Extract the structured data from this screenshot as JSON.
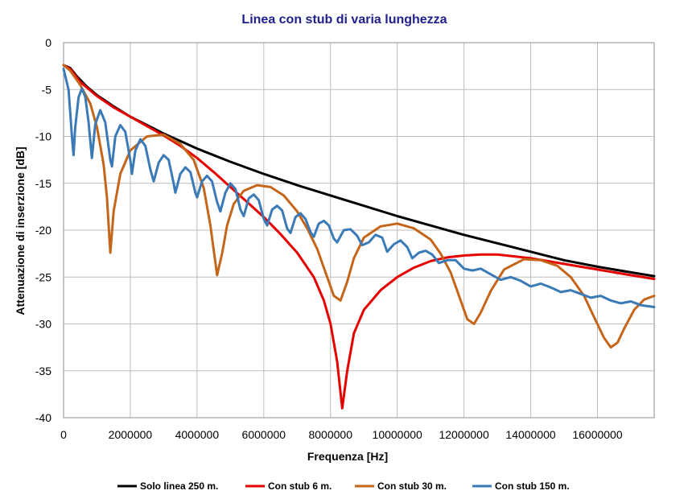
{
  "chart_data": {
    "type": "line",
    "title": "Linea con stub di varia lunghezza",
    "xlabel": "Frequenza [Hz]",
    "ylabel": "Attenuazione di inserzione [dB]",
    "xlim": [
      0,
      17700000
    ],
    "ylim": [
      -40,
      0
    ],
    "x_ticks": [
      0,
      2000000,
      4000000,
      6000000,
      8000000,
      10000000,
      12000000,
      14000000,
      16000000
    ],
    "x_tick_labels": [
      "0",
      "2000000",
      "4000000",
      "6000000",
      "8000000",
      "10000000",
      "12000000",
      "14000000",
      "16000000"
    ],
    "y_ticks": [
      0,
      -5,
      -10,
      -15,
      -20,
      -25,
      -30,
      -35,
      -40
    ],
    "y_tick_labels": [
      "0",
      "-5",
      "-10",
      "-15",
      "-20",
      "-25",
      "-30",
      "-35",
      "-40"
    ],
    "grid": true,
    "legend_position": "bottom",
    "series": [
      {
        "name": "Solo linea 250 m.",
        "color": "#000000",
        "x": [
          0,
          200000,
          400000,
          700000,
          1000000,
          1500000,
          2000000,
          2500000,
          3000000,
          3500000,
          4000000,
          5000000,
          6000000,
          7000000,
          8000000,
          9000000,
          10000000,
          11000000,
          12000000,
          13000000,
          14000000,
          15000000,
          16000000,
          17000000,
          17700000
        ],
        "y": [
          -2.4,
          -2.7,
          -3.6,
          -4.7,
          -5.6,
          -6.8,
          -7.9,
          -8.8,
          -9.7,
          -10.5,
          -11.3,
          -12.7,
          -14.0,
          -15.2,
          -16.3,
          -17.4,
          -18.5,
          -19.5,
          -20.5,
          -21.4,
          -22.3,
          -23.2,
          -23.9,
          -24.5,
          -24.9
        ]
      },
      {
        "name": "Con stub 6 m.",
        "color": "#e60000",
        "x": [
          0,
          200000,
          500000,
          1000000,
          1500000,
          2000000,
          2500000,
          3000000,
          3500000,
          4000000,
          4500000,
          5000000,
          5500000,
          6000000,
          6500000,
          7000000,
          7500000,
          7800000,
          8000000,
          8200000,
          8350000,
          8500000,
          8700000,
          9000000,
          9500000,
          10000000,
          10500000,
          11000000,
          11500000,
          12000000,
          12500000,
          13000000,
          14000000,
          15000000,
          16000000,
          17000000,
          17700000
        ],
        "y": [
          -2.4,
          -2.8,
          -4.2,
          -5.7,
          -6.9,
          -7.9,
          -8.9,
          -9.9,
          -11.0,
          -12.3,
          -13.8,
          -15.4,
          -17.0,
          -18.6,
          -20.4,
          -22.4,
          -25.0,
          -27.5,
          -30.0,
          -34.0,
          -39.0,
          -35.0,
          -31.0,
          -28.5,
          -26.4,
          -25.0,
          -24.0,
          -23.3,
          -22.9,
          -22.7,
          -22.6,
          -22.6,
          -23.0,
          -23.6,
          -24.2,
          -24.8,
          -25.2
        ]
      },
      {
        "name": "Con stub 30 m.",
        "color": "#c5651a",
        "x": [
          0,
          200000,
          500000,
          800000,
          1000000,
          1200000,
          1300000,
          1400000,
          1500000,
          1700000,
          2000000,
          2500000,
          3000000,
          3500000,
          3900000,
          4200000,
          4400000,
          4600000,
          4750000,
          4900000,
          5100000,
          5400000,
          5800000,
          6200000,
          6600000,
          7000000,
          7300000,
          7600000,
          7900000,
          8100000,
          8300000,
          8500000,
          8700000,
          9000000,
          9500000,
          10000000,
          10500000,
          11000000,
          11300000,
          11600000,
          11900000,
          12100000,
          12300000,
          12500000,
          12800000,
          13200000,
          13800000,
          14300000,
          14800000,
          15200000,
          15600000,
          15900000,
          16200000,
          16400000,
          16600000,
          16800000,
          17100000,
          17400000,
          17700000
        ],
        "y": [
          -2.4,
          -3.0,
          -4.5,
          -6.5,
          -9.0,
          -13.0,
          -16.5,
          -22.4,
          -18.0,
          -14.0,
          -11.5,
          -10.0,
          -9.8,
          -10.8,
          -12.5,
          -15.5,
          -19.5,
          -24.8,
          -22.5,
          -19.5,
          -17.2,
          -15.8,
          -15.2,
          -15.4,
          -16.3,
          -18.0,
          -19.8,
          -22.0,
          -25.0,
          -27.0,
          -27.5,
          -25.5,
          -23.0,
          -20.8,
          -19.6,
          -19.3,
          -19.8,
          -21.0,
          -22.5,
          -24.5,
          -27.5,
          -29.5,
          -30.0,
          -28.8,
          -26.5,
          -24.2,
          -23.1,
          -23.2,
          -23.8,
          -25.0,
          -27.0,
          -29.3,
          -31.5,
          -32.5,
          -32.0,
          -30.5,
          -28.5,
          -27.4,
          -27.0
        ]
      },
      {
        "name": "Con stub 150 m.",
        "color": "#3a7ab6",
        "x": [
          0,
          150000,
          250000,
          300000,
          350000,
          450000,
          550000,
          650000,
          750000,
          850000,
          950000,
          1100000,
          1250000,
          1400000,
          1450000,
          1550000,
          1700000,
          1850000,
          2000000,
          2050000,
          2150000,
          2300000,
          2450000,
          2600000,
          2700000,
          2850000,
          3000000,
          3150000,
          3300000,
          3350000,
          3500000,
          3650000,
          3800000,
          3950000,
          4000000,
          4150000,
          4300000,
          4450000,
          4600000,
          4700000,
          4850000,
          5000000,
          5150000,
          5300000,
          5400000,
          5550000,
          5700000,
          5850000,
          6000000,
          6100000,
          6250000,
          6400000,
          6550000,
          6700000,
          6800000,
          6950000,
          7100000,
          7250000,
          7400000,
          7500000,
          7650000,
          7800000,
          7950000,
          8100000,
          8200000,
          8400000,
          8600000,
          8800000,
          8950000,
          9150000,
          9350000,
          9550000,
          9700000,
          9900000,
          10100000,
          10300000,
          10450000,
          10650000,
          10850000,
          11050000,
          11250000,
          11500000,
          11750000,
          12000000,
          12250000,
          12500000,
          12800000,
          13100000,
          13400000,
          13700000,
          14000000,
          14300000,
          14600000,
          14900000,
          15200000,
          15500000,
          15800000,
          16100000,
          16400000,
          16700000,
          17000000,
          17300000,
          17700000
        ],
        "y": [
          -2.8,
          -5.0,
          -10.0,
          -12.0,
          -9.0,
          -5.8,
          -4.9,
          -5.8,
          -8.5,
          -12.3,
          -8.7,
          -7.2,
          -8.5,
          -12.5,
          -13.2,
          -10.0,
          -8.8,
          -9.5,
          -12.5,
          -14.0,
          -11.5,
          -10.3,
          -11.0,
          -13.5,
          -14.8,
          -12.8,
          -12.0,
          -12.5,
          -15.0,
          -16.0,
          -14.0,
          -13.3,
          -13.8,
          -16.0,
          -16.5,
          -14.8,
          -14.2,
          -14.8,
          -17.0,
          -18.0,
          -16.0,
          -15.0,
          -15.6,
          -17.8,
          -18.5,
          -16.6,
          -16.2,
          -16.8,
          -18.8,
          -19.5,
          -17.8,
          -17.4,
          -17.9,
          -19.8,
          -20.3,
          -18.6,
          -18.2,
          -18.8,
          -20.2,
          -20.7,
          -19.3,
          -19.0,
          -19.5,
          -20.9,
          -21.3,
          -20.0,
          -19.9,
          -20.6,
          -21.6,
          -21.3,
          -20.5,
          -20.8,
          -22.3,
          -21.5,
          -21.1,
          -21.8,
          -23.0,
          -22.4,
          -22.2,
          -22.6,
          -23.5,
          -23.2,
          -23.2,
          -24.1,
          -24.3,
          -24.1,
          -24.7,
          -25.3,
          -25.0,
          -25.4,
          -26.0,
          -25.7,
          -26.1,
          -26.6,
          -26.4,
          -26.8,
          -27.2,
          -27.0,
          -27.5,
          -27.8,
          -27.6,
          -28.0,
          -28.2
        ]
      }
    ]
  }
}
